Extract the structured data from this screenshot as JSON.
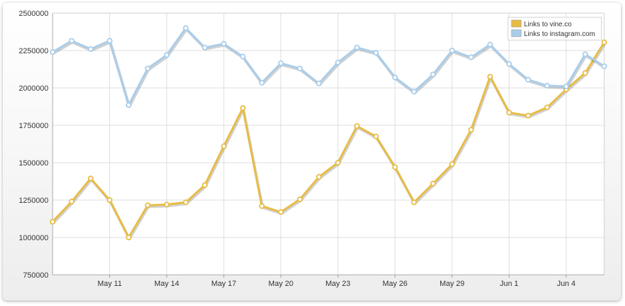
{
  "chart_data": {
    "type": "line",
    "title": "",
    "xlabel": "",
    "ylabel": "",
    "ylim": [
      750000,
      2500000
    ],
    "yticks": [
      "2500000",
      "2250000",
      "2000000",
      "1750000",
      "1500000",
      "1250000",
      "1000000",
      "750000"
    ],
    "x": [
      "May 8",
      "May 9",
      "May 10",
      "May 11",
      "May 12",
      "May 13",
      "May 14",
      "May 15",
      "May 16",
      "May 17",
      "May 18",
      "May 19",
      "May 20",
      "May 21",
      "May 22",
      "May 23",
      "May 24",
      "May 25",
      "May 26",
      "May 27",
      "May 28",
      "May 29",
      "May 30",
      "May 31",
      "Jun 1",
      "Jun 2",
      "Jun 3",
      "Jun 4",
      "Jun 5",
      "Jun 6"
    ],
    "xtick_labels": [
      "May 11",
      "May 14",
      "May 17",
      "May 20",
      "May 23",
      "May 26",
      "May 29",
      "Jun 1",
      "Jun 4"
    ],
    "grid": true,
    "legend_position": "top-right",
    "series": [
      {
        "name": "Links to vine.co",
        "color": "#e8bc44",
        "values": [
          1105000,
          1240000,
          1395000,
          1250000,
          1000000,
          1215000,
          1220000,
          1235000,
          1350000,
          1610000,
          1865000,
          1210000,
          1170000,
          1255000,
          1405000,
          1500000,
          1745000,
          1675000,
          1470000,
          1235000,
          1360000,
          1490000,
          1720000,
          2075000,
          1835000,
          1815000,
          1870000,
          1990000,
          2100000,
          2305000
        ]
      },
      {
        "name": "Links to instagram.com",
        "color": "#a9cdeb",
        "values": [
          2240000,
          2315000,
          2260000,
          2315000,
          1885000,
          2130000,
          2220000,
          2400000,
          2270000,
          2295000,
          2210000,
          2035000,
          2165000,
          2130000,
          2030000,
          2170000,
          2270000,
          2235000,
          2070000,
          1975000,
          2090000,
          2250000,
          2205000,
          2290000,
          2160000,
          2055000,
          2015000,
          2010000,
          2225000,
          2145000
        ]
      }
    ]
  }
}
